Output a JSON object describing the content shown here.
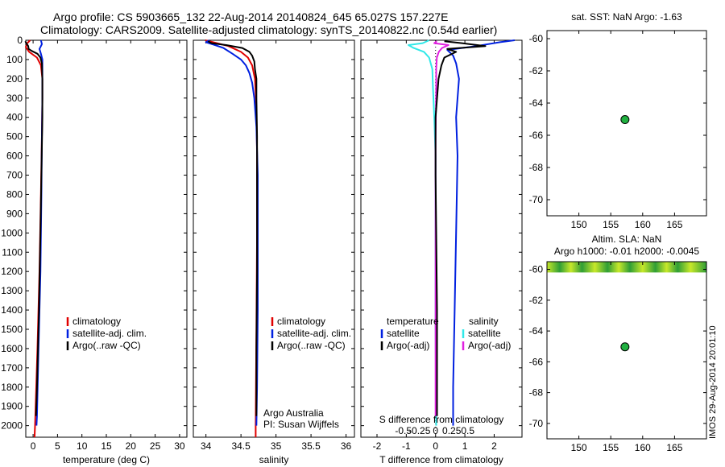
{
  "header": {
    "line1": "Argo profile: CS 5903665_132 22-Aug-2014 20140824_645 65.027S 157.227E",
    "line2": "Climatology: CARS2009. Satellite-adjusted climatology: synTS_20140822.nc (0.54d earlier)"
  },
  "footer_stamp": "IMOS 29-Aug-2014 20:01:10",
  "colors": {
    "climatology": "#e00000",
    "satellite": "#0020e0",
    "argo": "#000000",
    "sal_satellite": "#30e8e8",
    "sal_argo": "#e020e0",
    "float_marker": "#20b040",
    "sla_band_dark": "#2f9e36",
    "sla_band_light": "#c8e82a"
  },
  "chart_data": [
    {
      "id": "temperature",
      "type": "line",
      "xlabel": "temperature (deg C)",
      "ylabel": "",
      "xlim": [
        -1.5,
        31.5
      ],
      "ylim": [
        2060,
        0
      ],
      "xticks": [
        0,
        5,
        10,
        15,
        20,
        25,
        30
      ],
      "xtick_labels": [
        "0",
        "5",
        "10",
        "15",
        "20",
        "25",
        "30"
      ],
      "yticks": [
        0,
        100,
        200,
        300,
        400,
        500,
        600,
        700,
        800,
        900,
        1000,
        1100,
        1200,
        1300,
        1400,
        1500,
        1600,
        1700,
        1800,
        1900,
        2000
      ],
      "ytick_labels": [
        "0",
        "100",
        "200",
        "300",
        "400",
        "500",
        "600",
        "700",
        "800",
        "900",
        "1000",
        "1100",
        "1200",
        "1300",
        "1400",
        "1500",
        "1600",
        "1700",
        "1800",
        "1900",
        "2000"
      ],
      "legend": [
        "climatology",
        "satellite-adj. clim.",
        "Argo(..raw -QC)"
      ],
      "series": [
        {
          "name": "climatology",
          "depth": [
            0,
            15,
            35,
            60,
            90,
            130,
            200,
            300,
            500,
            800,
            1200,
            1600,
            2000,
            2060
          ],
          "values": [
            -0.6,
            -1.2,
            -1.5,
            -0.8,
            0.8,
            1.6,
            1.9,
            1.9,
            1.8,
            1.6,
            1.3,
            0.9,
            0.4,
            0.3
          ]
        },
        {
          "name": "satellite-adj. clim.",
          "depth": [
            0,
            20,
            45,
            70,
            100,
            150,
            300,
            500,
            800,
            1200,
            1600,
            1950,
            2000
          ],
          "values": [
            1.6,
            1.8,
            1.3,
            1.6,
            1.9,
            1.9,
            1.9,
            1.8,
            1.7,
            1.5,
            1.1,
            0.8,
            0.7
          ]
        },
        {
          "name": "Argo(..raw -QC)",
          "depth": [
            5,
            15,
            30,
            45,
            55,
            70,
            90,
            120,
            200,
            400,
            700,
            1000,
            1400,
            1800,
            1950
          ],
          "values": [
            -1.6,
            -1.4,
            -1.0,
            -0.9,
            -0.3,
            0.9,
            1.5,
            1.8,
            1.9,
            1.9,
            1.7,
            1.5,
            1.2,
            0.8,
            0.6
          ]
        }
      ]
    },
    {
      "id": "salinity",
      "type": "line",
      "xlabel": "salinity",
      "ylabel": "",
      "xlim": [
        33.82,
        36.12
      ],
      "ylim": [
        2060,
        0
      ],
      "xticks": [
        34,
        34.5,
        35,
        35.5,
        36
      ],
      "xtick_labels": [
        "34",
        "34.5",
        "35",
        "35.5",
        "36"
      ],
      "legend": [
        "climatology",
        "satellite-adj. clim.",
        "Argo(..raw -QC)"
      ],
      "annotation": [
        "Argo Australia",
        "PI: Susan Wijffels"
      ],
      "series": [
        {
          "name": "climatology",
          "depth": [
            0,
            10,
            30,
            60,
            90,
            130,
            200,
            350,
            600,
            1000,
            1500,
            2000,
            2060
          ],
          "values": [
            33.99,
            34.1,
            34.32,
            34.5,
            34.6,
            34.66,
            34.7,
            34.72,
            34.73,
            34.73,
            34.72,
            34.71,
            34.71
          ]
        },
        {
          "name": "satellite-adj. clim.",
          "depth": [
            0,
            10,
            25,
            40,
            70,
            100,
            130,
            170,
            220,
            300,
            450,
            700,
            1000,
            1400,
            1800,
            2000
          ],
          "values": [
            34.05,
            34.0,
            34.13,
            34.25,
            34.38,
            34.5,
            34.57,
            34.62,
            34.66,
            34.69,
            34.72,
            34.74,
            34.74,
            34.74,
            34.73,
            34.72
          ]
        },
        {
          "name": "Argo(..raw -QC)",
          "depth": [
            5,
            15,
            25,
            40,
            60,
            80,
            110,
            150,
            200,
            300,
            500,
            800,
            1200,
            1600,
            1950
          ],
          "values": [
            34.03,
            34.08,
            34.29,
            34.52,
            34.62,
            34.66,
            34.69,
            34.7,
            34.72,
            34.72,
            34.73,
            34.73,
            34.73,
            34.72,
            34.72
          ]
        }
      ]
    },
    {
      "id": "differences",
      "type": "line",
      "xlabel": "T difference from climatology",
      "xlabel_top": "S difference from climatology",
      "xlim": [
        -2.55,
        2.95
      ],
      "ylim": [
        2060,
        0
      ],
      "xticks": [
        -2,
        -1,
        0,
        1,
        2
      ],
      "xtick_labels": [
        "-2",
        "-1",
        "0",
        "1",
        "2"
      ],
      "xticks_top_values": [
        -0.5,
        -0.25,
        0,
        0.25,
        0.5
      ],
      "xticks_top_labels": [
        "-0.5",
        "-0.25",
        "0",
        "0.25",
        "0.5"
      ],
      "legend": {
        "temperature_heading": "temperature",
        "salinity_heading": "salinity",
        "temperature": [
          "satellite",
          "Argo(-adj)"
        ],
        "salinity": [
          "satellite",
          "Argo(-adj)"
        ]
      },
      "series": [
        {
          "name": "T satellite",
          "depth": [
            0,
            10,
            30,
            50,
            80,
            120,
            200,
            400,
            600,
            1000,
            1400,
            1800,
            2000
          ],
          "values": [
            2.7,
            2.2,
            1.4,
            0.4,
            0.6,
            0.7,
            0.8,
            0.7,
            0.75,
            0.7,
            0.65,
            0.6,
            0.6
          ]
        },
        {
          "name": "T Argo(-adj)",
          "depth": [
            5,
            15,
            30,
            45,
            60,
            90,
            130,
            200,
            400,
            700,
            1000,
            1400,
            1800,
            1950
          ],
          "values": [
            0.3,
            0.9,
            1.7,
            0.4,
            0.7,
            0.3,
            0.2,
            0.1,
            0.0,
            0.0,
            0.02,
            0.05,
            0.05,
            0.05
          ]
        },
        {
          "name": "S satellite",
          "depth": [
            0,
            15,
            25,
            40,
            60,
            90,
            150,
            250,
            400,
            600,
            1000,
            1500,
            2000
          ],
          "values": [
            -0.1,
            -0.2,
            -0.42,
            -0.34,
            -0.18,
            -0.1,
            -0.05,
            -0.04,
            -0.02,
            0.0,
            0.0,
            0.0,
            0.01
          ]
        },
        {
          "name": "S Argo(-adj)",
          "depth": [
            5,
            15,
            25,
            40,
            60,
            90,
            150,
            250,
            500,
            1000,
            1500,
            1950
          ],
          "values": [
            0.02,
            -0.02,
            0.2,
            0.1,
            0.05,
            0.02,
            0.01,
            0.01,
            0.0,
            0.0,
            0.0,
            0.0
          ]
        }
      ]
    },
    {
      "id": "sst_map",
      "type": "scatter",
      "title": "sat. SST: NaN Argo: -1.63",
      "xlim": [
        145,
        170
      ],
      "ylim": [
        -71,
        -59.5
      ],
      "xticks": [
        150,
        155,
        160,
        165
      ],
      "xtick_labels": [
        "150",
        "155",
        "160",
        "165"
      ],
      "yticks": [
        -60,
        -62,
        -64,
        -66,
        -68,
        -70
      ],
      "ytick_labels": [
        "-60",
        "-62",
        "-64",
        "-66",
        "-68",
        "-70"
      ],
      "points": [
        {
          "lon": 157.227,
          "lat": -65.027
        }
      ]
    },
    {
      "id": "sla_map",
      "type": "scatter",
      "title_line1": "Altim. SLA: NaN",
      "title_line2": "Argo h1000: -0.01 h2000: -0.0045",
      "xlim": [
        145,
        170
      ],
      "ylim": [
        -71,
        -59.5
      ],
      "xticks": [
        150,
        155,
        160,
        165
      ],
      "xtick_labels": [
        "150",
        "155",
        "160",
        "165"
      ],
      "yticks": [
        -60,
        -62,
        -64,
        -66,
        -68,
        -70
      ],
      "ytick_labels": [
        "-60",
        "-62",
        "-64",
        "-66",
        "-68",
        "-70"
      ],
      "sla_band_lat": [
        -60.2,
        -59.5
      ],
      "points": [
        {
          "lon": 157.227,
          "lat": -65.027
        }
      ]
    }
  ]
}
